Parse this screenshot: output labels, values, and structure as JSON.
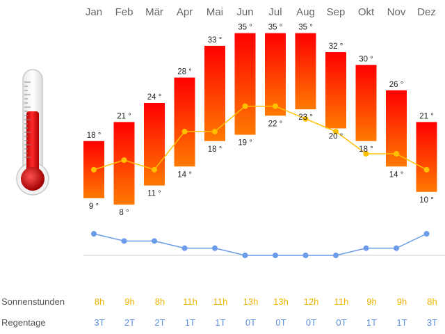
{
  "chart_data": {
    "type": "bar",
    "categories": [
      "Jan",
      "Feb",
      "Mär",
      "Apr",
      "Mai",
      "Jun",
      "Jul",
      "Aug",
      "Sep",
      "Okt",
      "Nov",
      "Dez"
    ],
    "temp_unit": "°",
    "series": [
      {
        "values": [
          18,
          21,
          24,
          28,
          33,
          35,
          35,
          35,
          32,
          30,
          26,
          21
        ]
      },
      {
        "values": [
          9,
          8,
          11,
          14,
          18,
          19,
          22,
          23,
          20,
          18,
          14,
          10
        ]
      },
      {
        "values": [
          13.5,
          15,
          13.5,
          19.5,
          19.5,
          23.5,
          23.5,
          21.5,
          19.5,
          16,
          16,
          13.5
        ]
      },
      {
        "values": [
          3,
          2,
          2,
          1,
          1,
          0,
          0,
          0,
          0,
          1,
          1,
          3
        ]
      }
    ],
    "rows": {
      "sun_label": "Sonnenstunden",
      "sun_values": [
        "8h",
        "9h",
        "8h",
        "11h",
        "11h",
        "13h",
        "13h",
        "12h",
        "11h",
        "9h",
        "9h",
        "8h"
      ],
      "rain_label": "Regentage",
      "rain_values": [
        "3T",
        "2T",
        "2T",
        "1T",
        "1T",
        "0T",
        "0T",
        "0T",
        "0T",
        "1T",
        "1T",
        "3T"
      ]
    },
    "colors": {
      "bar_top": "#ff0000",
      "bar_bottom": "#ff7a00",
      "mean_line": "#ffc000",
      "rain_line": "#6a9bea",
      "sun_text": "#f0b400",
      "rain_text": "#5b8fe0"
    }
  }
}
